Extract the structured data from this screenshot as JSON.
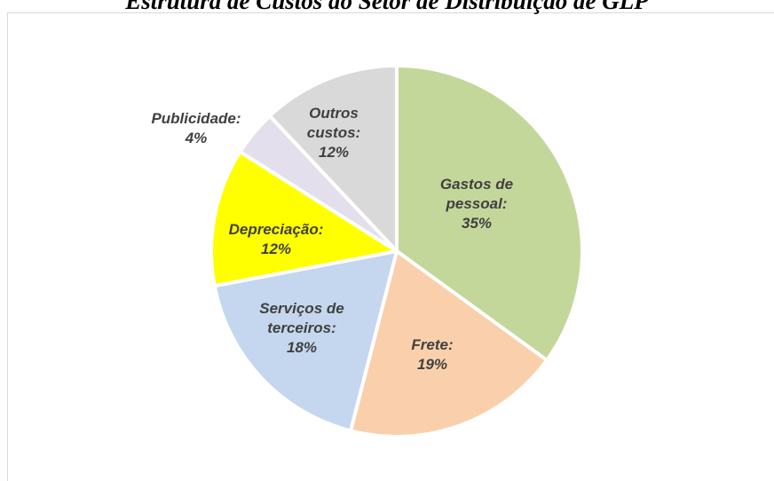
{
  "chart_data": {
    "type": "pie",
    "title": "Estrutura de Custos do Setor de Distribuição de GLP",
    "categories": [
      "Gastos de pessoal:",
      "Frete:",
      "Serviços de terceiros:",
      "Depreciação:",
      "Publicidade:",
      "Outros custos:"
    ],
    "values": [
      35,
      19,
      18,
      12,
      4,
      12
    ],
    "value_labels": [
      "35%",
      "19%",
      "18%",
      "12%",
      "4%",
      "12%"
    ],
    "colors": [
      "#c4d79b",
      "#fad0ac",
      "#c5d7ef",
      "#ffff00",
      "#e4dfec",
      "#d9d9d9"
    ]
  }
}
